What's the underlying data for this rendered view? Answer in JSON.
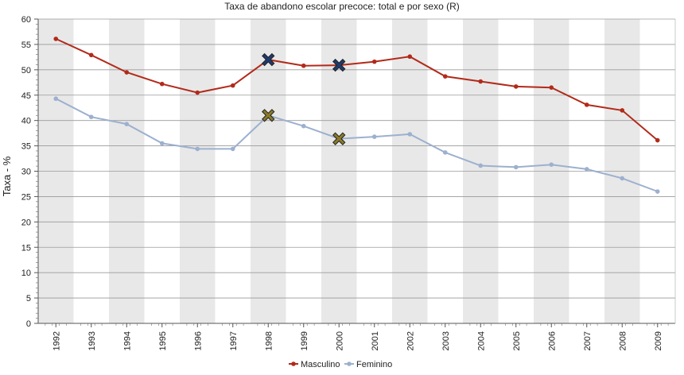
{
  "chart_data": {
    "type": "line",
    "title": "Taxa de abandono escolar precoce: total e por sexo (R)",
    "xlabel": "",
    "ylabel": "Taxa - %",
    "ylim": [
      0,
      60
    ],
    "yticks": [
      0,
      5,
      10,
      15,
      20,
      25,
      30,
      35,
      40,
      45,
      50,
      55,
      60
    ],
    "grid": true,
    "legend_position": "bottom-center",
    "categories": [
      "1992",
      "1993",
      "1994",
      "1995",
      "1996",
      "1997",
      "1998",
      "1999",
      "2000",
      "2001",
      "2002",
      "2003",
      "2004",
      "2005",
      "2006",
      "2007",
      "2008",
      "2009"
    ],
    "series": [
      {
        "name": "Masculino",
        "color": "#b22a1a",
        "values": [
          56.1,
          52.9,
          49.5,
          47.2,
          45.5,
          46.9,
          52.0,
          50.8,
          50.9,
          51.6,
          52.6,
          48.7,
          47.7,
          46.7,
          46.5,
          43.1,
          42.0,
          36.1
        ],
        "break_markers": [
          "1998",
          "2000"
        ],
        "break_marker_color": "#1f3a6e"
      },
      {
        "name": "Feminino",
        "color": "#9cb0cf",
        "values": [
          44.3,
          40.7,
          39.3,
          35.5,
          34.4,
          34.4,
          41.0,
          38.9,
          36.4,
          36.8,
          37.3,
          33.7,
          31.1,
          30.8,
          31.3,
          30.4,
          28.6,
          26.0
        ],
        "break_markers": [
          "1998",
          "2000"
        ],
        "break_marker_color": "#8a7a2a"
      }
    ]
  }
}
